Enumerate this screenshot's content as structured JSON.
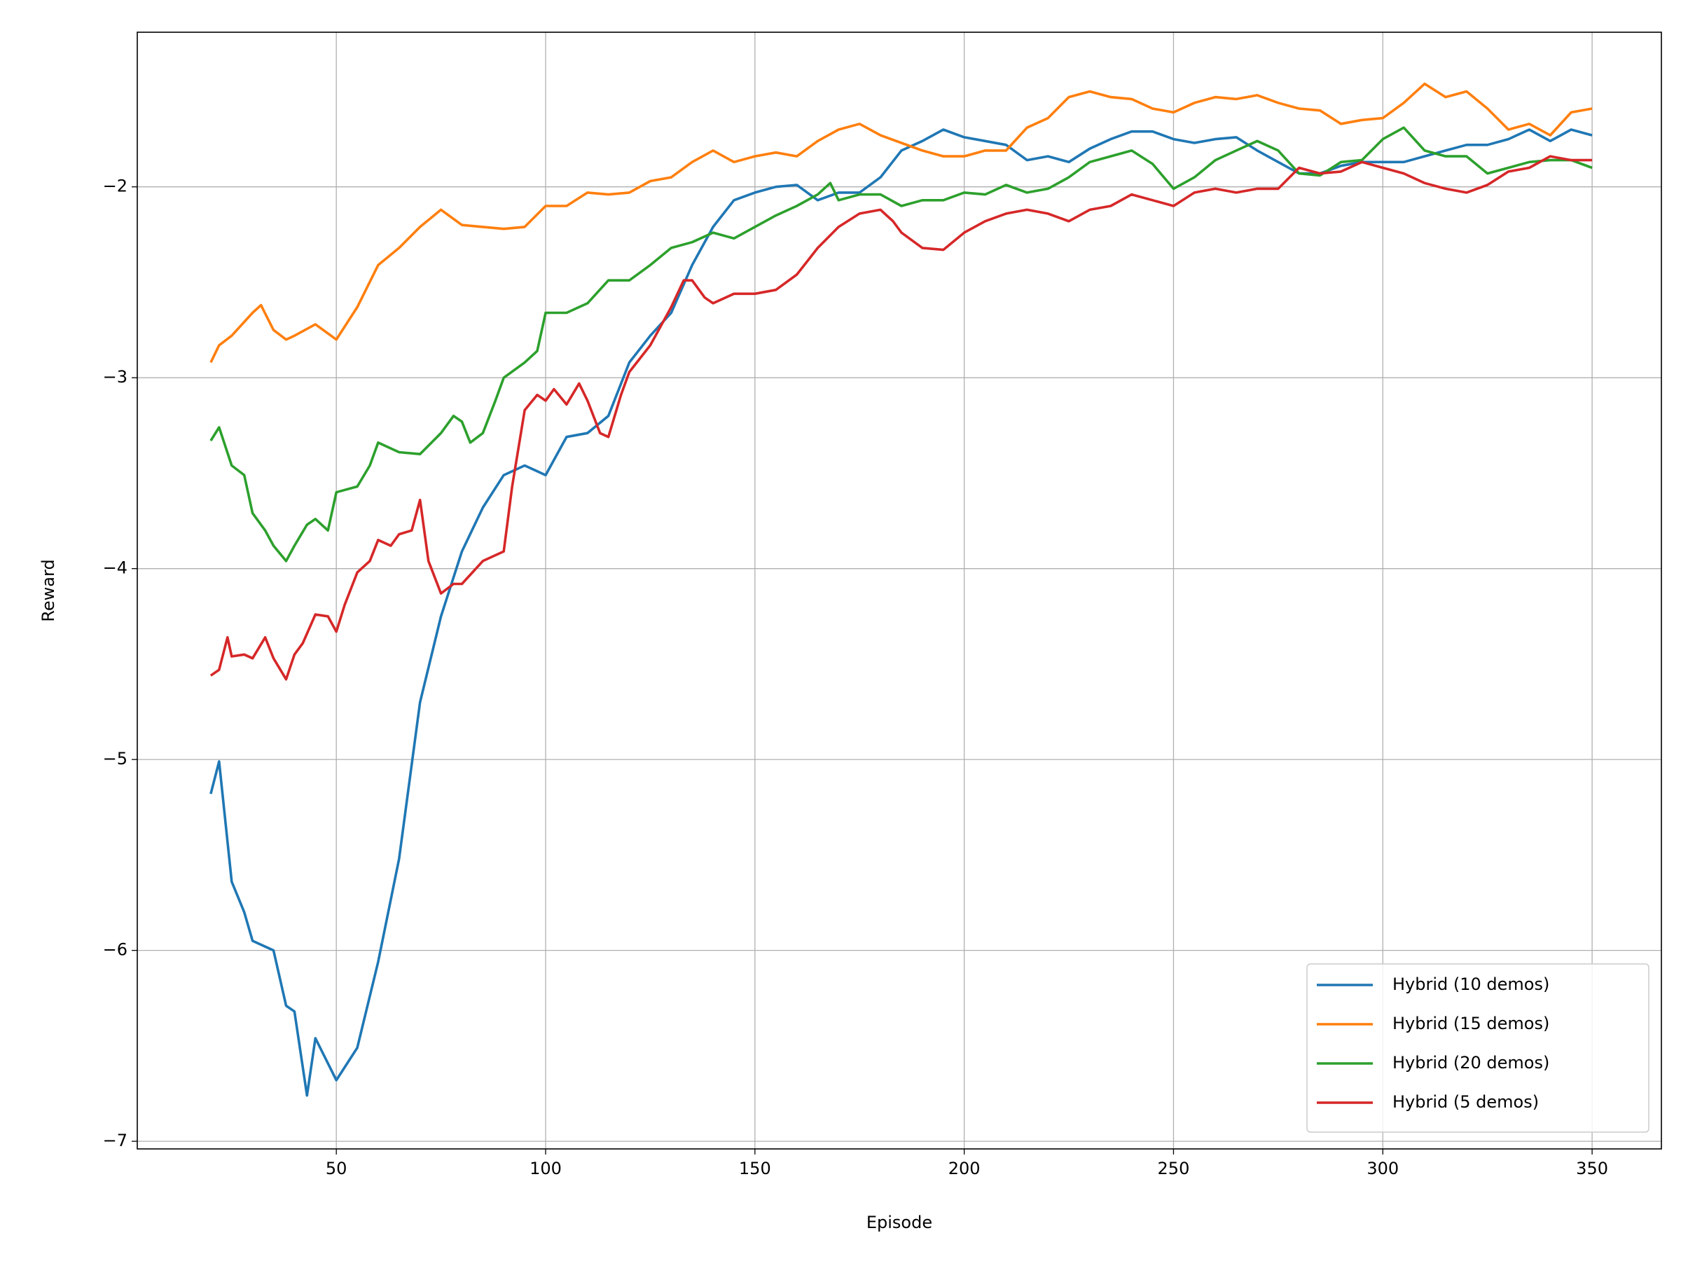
{
  "chart_data": {
    "type": "line",
    "xlabel": "Episode",
    "ylabel": "Reward",
    "xlim": [
      2.45,
      366.55
    ],
    "ylim": [
      -7.04,
      -1.19
    ],
    "xticks": [
      50,
      100,
      150,
      200,
      250,
      300,
      350
    ],
    "yticks": [
      {
        "value": -7,
        "label": "−7"
      },
      {
        "value": -6,
        "label": "−6"
      },
      {
        "value": -5,
        "label": "−5"
      },
      {
        "value": -4,
        "label": "−4"
      },
      {
        "value": -3,
        "label": "−3"
      },
      {
        "value": -2,
        "label": "−2"
      }
    ],
    "grid": true,
    "legend": "lower right",
    "series": [
      {
        "name": "Hybrid (10 demos)",
        "color": "#1f77b4",
        "x": [
          20,
          22,
          25,
          28,
          30,
          35,
          38,
          40,
          43,
          45,
          50,
          55,
          60,
          65,
          70,
          75,
          80,
          85,
          90,
          95,
          100,
          105,
          110,
          115,
          120,
          125,
          130,
          135,
          140,
          145,
          150,
          155,
          160,
          165,
          170,
          175,
          180,
          185,
          190,
          195,
          200,
          205,
          210,
          215,
          220,
          225,
          230,
          235,
          240,
          245,
          250,
          255,
          260,
          265,
          270,
          275,
          280,
          285,
          290,
          295,
          300,
          305,
          310,
          315,
          320,
          325,
          330,
          335,
          340,
          345,
          350
        ],
        "values": [
          -5.18,
          -5.01,
          -5.64,
          -5.8,
          -5.95,
          -6.0,
          -6.29,
          -6.32,
          -6.76,
          -6.46,
          -6.68,
          -6.51,
          -6.06,
          -5.52,
          -4.7,
          -4.25,
          -3.91,
          -3.68,
          -3.51,
          -3.46,
          -3.51,
          -3.31,
          -3.29,
          -3.2,
          -2.92,
          -2.78,
          -2.66,
          -2.41,
          -2.21,
          -2.07,
          -2.03,
          -2.0,
          -1.99,
          -2.07,
          -2.03,
          -2.03,
          -1.95,
          -1.81,
          -1.76,
          -1.7,
          -1.74,
          -1.76,
          -1.78,
          -1.86,
          -1.84,
          -1.87,
          -1.8,
          -1.75,
          -1.71,
          -1.71,
          -1.75,
          -1.77,
          -1.75,
          -1.74,
          -1.81,
          -1.87,
          -1.93,
          -1.93,
          -1.89,
          -1.87,
          -1.87,
          -1.87,
          -1.84,
          -1.81,
          -1.78,
          -1.78,
          -1.75,
          -1.7,
          -1.76,
          -1.7,
          -1.73
        ]
      },
      {
        "name": "Hybrid (15 demos)",
        "color": "#ff7f0e",
        "x": [
          20,
          22,
          25,
          30,
          32,
          35,
          38,
          40,
          45,
          50,
          55,
          60,
          65,
          70,
          75,
          80,
          85,
          90,
          95,
          100,
          105,
          110,
          115,
          120,
          125,
          130,
          135,
          140,
          145,
          150,
          155,
          160,
          165,
          170,
          175,
          180,
          185,
          190,
          195,
          200,
          205,
          210,
          215,
          220,
          225,
          230,
          235,
          240,
          245,
          250,
          255,
          260,
          265,
          270,
          275,
          280,
          285,
          290,
          295,
          300,
          305,
          310,
          315,
          320,
          325,
          330,
          335,
          340,
          345,
          350
        ],
        "values": [
          -2.92,
          -2.83,
          -2.78,
          -2.66,
          -2.62,
          -2.75,
          -2.8,
          -2.78,
          -2.72,
          -2.8,
          -2.63,
          -2.41,
          -2.32,
          -2.21,
          -2.12,
          -2.2,
          -2.21,
          -2.22,
          -2.21,
          -2.1,
          -2.1,
          -2.03,
          -2.04,
          -2.03,
          -1.97,
          -1.95,
          -1.87,
          -1.81,
          -1.87,
          -1.84,
          -1.82,
          -1.84,
          -1.76,
          -1.7,
          -1.67,
          -1.73,
          -1.77,
          -1.81,
          -1.84,
          -1.84,
          -1.81,
          -1.81,
          -1.69,
          -1.64,
          -1.53,
          -1.5,
          -1.53,
          -1.54,
          -1.59,
          -1.61,
          -1.56,
          -1.53,
          -1.54,
          -1.52,
          -1.56,
          -1.59,
          -1.6,
          -1.67,
          -1.65,
          -1.64,
          -1.56,
          -1.46,
          -1.53,
          -1.5,
          -1.59,
          -1.7,
          -1.67,
          -1.73,
          -1.61,
          -1.59
        ]
      },
      {
        "name": "Hybrid (20 demos)",
        "color": "#2ca02c",
        "x": [
          20,
          22,
          25,
          28,
          30,
          33,
          35,
          38,
          40,
          43,
          45,
          48,
          50,
          55,
          58,
          60,
          65,
          70,
          75,
          78,
          80,
          82,
          85,
          88,
          90,
          95,
          98,
          100,
          105,
          110,
          115,
          120,
          125,
          130,
          135,
          140,
          145,
          150,
          155,
          160,
          165,
          168,
          170,
          175,
          180,
          185,
          190,
          195,
          200,
          205,
          210,
          215,
          220,
          225,
          230,
          235,
          240,
          245,
          250,
          255,
          260,
          265,
          270,
          275,
          280,
          285,
          290,
          295,
          300,
          305,
          310,
          315,
          320,
          325,
          330,
          335,
          340,
          345,
          350
        ],
        "values": [
          -3.33,
          -3.26,
          -3.46,
          -3.51,
          -3.71,
          -3.8,
          -3.88,
          -3.96,
          -3.88,
          -3.77,
          -3.74,
          -3.8,
          -3.6,
          -3.57,
          -3.46,
          -3.34,
          -3.39,
          -3.4,
          -3.29,
          -3.2,
          -3.23,
          -3.34,
          -3.29,
          -3.12,
          -3.0,
          -2.92,
          -2.86,
          -2.66,
          -2.66,
          -2.61,
          -2.49,
          -2.49,
          -2.41,
          -2.32,
          -2.29,
          -2.24,
          -2.27,
          -2.21,
          -2.15,
          -2.1,
          -2.04,
          -1.98,
          -2.07,
          -2.04,
          -2.04,
          -2.1,
          -2.07,
          -2.07,
          -2.03,
          -2.04,
          -1.99,
          -2.03,
          -2.01,
          -1.95,
          -1.87,
          -1.84,
          -1.81,
          -1.88,
          -2.01,
          -1.95,
          -1.86,
          -1.81,
          -1.76,
          -1.81,
          -1.93,
          -1.94,
          -1.87,
          -1.86,
          -1.75,
          -1.69,
          -1.81,
          -1.84,
          -1.84,
          -1.93,
          -1.9,
          -1.87,
          -1.86,
          -1.86,
          -1.9
        ]
      },
      {
        "name": "Hybrid (5 demos)",
        "color": "#d62728",
        "x": [
          20,
          22,
          24,
          25,
          28,
          30,
          33,
          35,
          38,
          40,
          42,
          45,
          48,
          50,
          52,
          55,
          58,
          60,
          63,
          65,
          68,
          70,
          72,
          75,
          78,
          80,
          85,
          90,
          92,
          95,
          98,
          100,
          102,
          105,
          108,
          110,
          113,
          115,
          118,
          120,
          125,
          130,
          133,
          135,
          138,
          140,
          145,
          150,
          155,
          160,
          165,
          170,
          175,
          180,
          183,
          185,
          190,
          195,
          200,
          205,
          210,
          215,
          220,
          225,
          230,
          235,
          240,
          245,
          250,
          255,
          260,
          265,
          270,
          275,
          280,
          285,
          290,
          295,
          300,
          305,
          310,
          315,
          320,
          325,
          330,
          335,
          340,
          345,
          350
        ],
        "values": [
          -4.56,
          -4.53,
          -4.36,
          -4.46,
          -4.45,
          -4.47,
          -4.36,
          -4.47,
          -4.58,
          -4.45,
          -4.39,
          -4.24,
          -4.25,
          -4.33,
          -4.19,
          -4.02,
          -3.96,
          -3.85,
          -3.88,
          -3.82,
          -3.8,
          -3.64,
          -3.96,
          -4.13,
          -4.08,
          -4.08,
          -3.96,
          -3.91,
          -3.57,
          -3.17,
          -3.09,
          -3.12,
          -3.06,
          -3.14,
          -3.03,
          -3.12,
          -3.29,
          -3.31,
          -3.09,
          -2.97,
          -2.83,
          -2.63,
          -2.49,
          -2.49,
          -2.58,
          -2.61,
          -2.56,
          -2.56,
          -2.54,
          -2.46,
          -2.32,
          -2.21,
          -2.14,
          -2.12,
          -2.18,
          -2.24,
          -2.32,
          -2.33,
          -2.24,
          -2.18,
          -2.14,
          -2.12,
          -2.14,
          -2.18,
          -2.12,
          -2.1,
          -2.04,
          -2.07,
          -2.1,
          -2.03,
          -2.01,
          -2.03,
          -2.01,
          -2.01,
          -1.9,
          -1.93,
          -1.92,
          -1.87,
          -1.9,
          -1.93,
          -1.98,
          -2.01,
          -2.03,
          -1.99,
          -1.92,
          -1.9,
          -1.84,
          -1.86,
          -1.86
        ]
      }
    ]
  }
}
